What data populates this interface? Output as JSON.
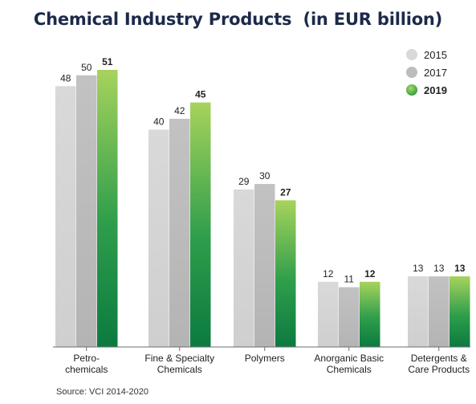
{
  "chart_data": {
    "type": "bar",
    "title": "Chemical Industry Products  (in EUR billion)",
    "categories": [
      [
        "Petro-",
        "chemicals"
      ],
      [
        "Fine & Specialty",
        "Chemicals"
      ],
      [
        "Polymers"
      ],
      [
        "Anorganic Basic",
        "Chemicals"
      ],
      [
        "Detergents &",
        "Care Products"
      ]
    ],
    "series": [
      {
        "name": "2015",
        "values": [
          48,
          40,
          29,
          12,
          13
        ],
        "color": "#d6d6d6"
      },
      {
        "name": "2017",
        "values": [
          50,
          42,
          30,
          11,
          13
        ],
        "color": "#bcbcbc"
      },
      {
        "name": "2019",
        "values": [
          51,
          45,
          27,
          12,
          13
        ],
        "color": "#3aa653"
      }
    ],
    "value_labels": [
      [
        "48",
        "40",
        "29",
        "12",
        "13"
      ],
      [
        "50",
        "42",
        "30",
        "11",
        "13"
      ],
      [
        "51",
        "45",
        "27",
        "12",
        "13"
      ]
    ],
    "highlight_series": "2019",
    "ylim": [
      0,
      51
    ],
    "legend_position": "top-right",
    "grid": false,
    "source": "Source: VCI 2014-2020"
  }
}
